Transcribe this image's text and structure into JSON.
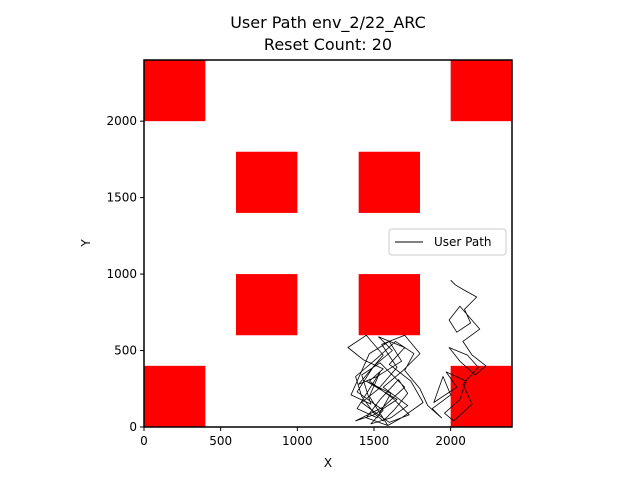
{
  "chart_data": {
    "type": "line",
    "title": "User Path env_2/22_ARC",
    "subtitle": "Reset Count: 20",
    "xlabel": "X",
    "ylabel": "Y",
    "xlim": [
      0,
      2400
    ],
    "ylim": [
      0,
      2400
    ],
    "xticks": [
      0,
      500,
      1000,
      1500,
      2000
    ],
    "yticks": [
      0,
      500,
      1000,
      1500,
      2000
    ],
    "grid": false,
    "legend": {
      "placement": "center-right",
      "entries": [
        "User Path"
      ]
    },
    "obstacle_color": "#ff0000",
    "path_color": "#000000",
    "obstacles": [
      {
        "x0": 0,
        "y0": 2000,
        "x1": 400,
        "y1": 2400
      },
      {
        "x0": 2000,
        "y0": 2000,
        "x1": 2400,
        "y1": 2400
      },
      {
        "x0": 600,
        "y0": 1400,
        "x1": 1000,
        "y1": 1800
      },
      {
        "x0": 1400,
        "y0": 1400,
        "x1": 1800,
        "y1": 1800
      },
      {
        "x0": 600,
        "y0": 600,
        "x1": 1000,
        "y1": 1000
      },
      {
        "x0": 1400,
        "y0": 600,
        "x1": 1800,
        "y1": 1000
      },
      {
        "x0": 0,
        "y0": 0,
        "x1": 400,
        "y1": 400
      },
      {
        "x0": 2000,
        "y0": 0,
        "x1": 2400,
        "y1": 400
      }
    ],
    "series": [
      {
        "name": "User Path",
        "x": [
          1590,
          1470,
          1540,
          1390,
          1520,
          1610,
          1450,
          1650,
          1500,
          1380,
          1560,
          1700,
          1540,
          1420,
          1480,
          1350,
          1470,
          1600,
          1680,
          1520,
          1400,
          1560,
          1450,
          1330,
          1430,
          1560,
          1470,
          1620,
          1730,
          1600,
          1500,
          1420,
          1530,
          1650,
          1550,
          1700,
          1800,
          1690,
          1560,
          1720,
          1610,
          1480,
          1560,
          1390,
          1500,
          1620,
          1530,
          1700,
          1600,
          1740,
          1820,
          1680,
          1590,
          1450,
          1540,
          1660,
          1720,
          1630,
          1560,
          1500,
          1420,
          1380,
          1520,
          1640,
          1760,
          1700,
          1800,
          1850,
          1940,
          1880,
          2000,
          1950,
          1890,
          2040,
          1970,
          2100,
          2060,
          1960,
          2020,
          2140,
          2080,
          2180,
          2110,
          1990,
          2060,
          2160,
          2230,
          2140,
          2080,
          2190,
          2120,
          2060,
          1990,
          2040,
          2130,
          2090,
          2170,
          2080,
          2030,
          2000
        ],
        "y": [
          10,
          200,
          360,
          120,
          60,
          220,
          300,
          180,
          80,
          40,
          130,
          260,
          420,
          340,
          150,
          210,
          480,
          560,
          430,
          330,
          280,
          470,
          600,
          520,
          440,
          380,
          300,
          190,
          80,
          30,
          100,
          160,
          250,
          390,
          540,
          600,
          480,
          370,
          260,
          140,
          60,
          20,
          110,
          230,
          400,
          500,
          590,
          520,
          410,
          300,
          160,
          60,
          10,
          60,
          180,
          310,
          220,
          110,
          40,
          90,
          200,
          330,
          450,
          560,
          480,
          370,
          250,
          140,
          60,
          120,
          210,
          330,
          160,
          260,
          360,
          300,
          180,
          90,
          40,
          150,
          280,
          390,
          470,
          520,
          430,
          340,
          400,
          470,
          560,
          640,
          720,
          790,
          700,
          620,
          680,
          770,
          850,
          900,
          930,
          960
        ]
      }
    ]
  }
}
